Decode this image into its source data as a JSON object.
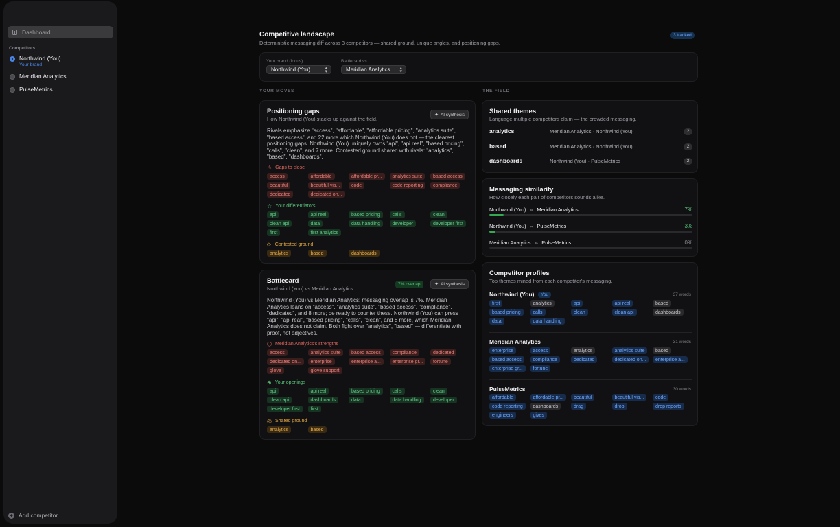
{
  "sidebar": {
    "nav_dashboard": "Dashboard",
    "section_label": "Competitors",
    "competitors": [
      {
        "name": "Northwind (You)",
        "sub": "Your brand"
      },
      {
        "name": "Meridian Analytics"
      },
      {
        "name": "PulseMetrics"
      }
    ],
    "add_competitor": "Add competitor"
  },
  "header": {
    "title": "Competitive landscape",
    "subtitle": "Deterministic messaging diff across 3 competitors — shared ground, unique angles, and positioning gaps.",
    "tracked_badge": "3 tracked"
  },
  "pickers": {
    "focus_label": "Your brand (focus)",
    "focus_value": "Northwind (You)",
    "vs_label": "Battlecard vs",
    "vs_value": "Meridian Analytics"
  },
  "columns": {
    "left": "YOUR MOVES",
    "right": "THE FIELD"
  },
  "ai_badge": "AI synthesis",
  "gaps": {
    "title": "Positioning gaps",
    "subtitle": "How Northwind (You) stacks up against the field.",
    "summary": "Rivals emphasize \"access\", \"affordable\", \"affordable pricing\", \"analytics suite\", \"based access\", and 22 more which Northwind (You) does not — the clearest positioning gaps. Northwind (You) uniquely owns \"api\", \"api real\", \"based pricing\", \"calls\", \"clean\", and 7 more. Contested ground shared with rivals: \"analytics\", \"based\", \"dashboards\".",
    "gaps_label": "Gaps to close",
    "gaps_chips": [
      "access",
      "affordable",
      "affordable pr...",
      "analytics suite",
      "based access",
      "beautiful",
      "beautiful vis...",
      "code",
      "code reporting",
      "compliance",
      "dedicated",
      "dedicated on..."
    ],
    "diff_label": "Your differentiators",
    "diff_chips": [
      "api",
      "api real",
      "based pricing",
      "calls",
      "clean",
      "clean api",
      "data",
      "data handling",
      "developer",
      "developer first",
      "first",
      "first analytics"
    ],
    "contested_label": "Contested ground",
    "contested_chips": [
      "analytics",
      "based",
      "dashboards"
    ]
  },
  "battlecard": {
    "title": "Battlecard",
    "subtitle": "Northwind (You) vs Meridian Analytics",
    "overlap_badge": "7% overlap",
    "summary": "Northwind (You) vs Meridian Analytics: messaging overlap is 7%. Meridian Analytics leans on \"access\", \"analytics suite\", \"based access\", \"compliance\", \"dedicated\", and 8 more; be ready to counter these. Northwind (You) can press \"api\", \"api real\", \"based pricing\", \"calls\", \"clean\", and 8 more, which Meridian Analytics does not claim. Both fight over \"analytics\", \"based\" — differentiate with proof, not adjectives.",
    "strengths_label": "Meridian Analytics's strengths",
    "strengths_chips": [
      "access",
      "analytics suite",
      "based access",
      "compliance",
      "dedicated",
      "dedicated on...",
      "enterprise",
      "enterprise a...",
      "enterprise gr...",
      "fortune",
      "glove",
      "glove support"
    ],
    "openings_label": "Your openings",
    "openings_chips": [
      "api",
      "api real",
      "based pricing",
      "calls",
      "clean",
      "clean api",
      "dashboards",
      "data",
      "data handling",
      "developer",
      "developer first",
      "first"
    ],
    "shared_label": "Shared ground",
    "shared_chips": [
      "analytics",
      "based"
    ]
  },
  "shared_themes": {
    "title": "Shared themes",
    "subtitle": "Language multiple competitors claim — the crowded messaging.",
    "rows": [
      {
        "theme": "analytics",
        "competitors": "Meridian Analytics · Northwind (You)",
        "count": "2"
      },
      {
        "theme": "based",
        "competitors": "Meridian Analytics · Northwind (You)",
        "count": "2"
      },
      {
        "theme": "dashboards",
        "competitors": "Northwind (You) · PulseMetrics",
        "count": "2"
      }
    ]
  },
  "similarity": {
    "title": "Messaging similarity",
    "subtitle": "How closely each pair of competitors sounds alike.",
    "rows": [
      {
        "a": "Northwind (You)",
        "b": "Meridian Analytics",
        "pct_label": "7%",
        "value": 0.07
      },
      {
        "a": "Northwind (You)",
        "b": "PulseMetrics",
        "pct_label": "3%",
        "value": 0.03
      },
      {
        "a": "Meridian Analytics",
        "b": "PulseMetrics",
        "pct_label": "0%",
        "value": 0.0
      }
    ]
  },
  "profiles": {
    "title": "Competitor profiles",
    "subtitle": "Top themes mined from each competitor's messaging.",
    "you_badge": "You",
    "items": [
      {
        "name": "Northwind (You)",
        "words": "37 words",
        "chips": [
          [
            "first",
            "b"
          ],
          [
            "analytics",
            "n"
          ],
          [
            "api",
            "b"
          ],
          [
            "api real",
            "b"
          ],
          [
            "based",
            "n"
          ],
          [
            "based pricing",
            "b"
          ],
          [
            "calls",
            "b"
          ],
          [
            "clean",
            "b"
          ],
          [
            "clean api",
            "b"
          ],
          [
            "dashboards",
            "n"
          ],
          [
            "data",
            "b"
          ],
          [
            "data handling",
            "b"
          ]
        ]
      },
      {
        "name": "Meridian Analytics",
        "words": "31 words",
        "chips": [
          [
            "enterprise",
            "b"
          ],
          [
            "access",
            "b"
          ],
          [
            "analytics",
            "n"
          ],
          [
            "analytics suite",
            "b"
          ],
          [
            "based",
            "n"
          ],
          [
            "based access",
            "b"
          ],
          [
            "compliance",
            "b"
          ],
          [
            "dedicated",
            "b"
          ],
          [
            "dedicated on...",
            "b"
          ],
          [
            "enterprise a...",
            "b"
          ],
          [
            "enterprise gr...",
            "b"
          ],
          [
            "fortune",
            "b"
          ]
        ]
      },
      {
        "name": "PulseMetrics",
        "words": "30 words",
        "chips": [
          [
            "affordable",
            "b"
          ],
          [
            "affordable pr...",
            "b"
          ],
          [
            "beautiful",
            "b"
          ],
          [
            "beautiful vis...",
            "b"
          ],
          [
            "code",
            "b"
          ],
          [
            "code reporting",
            "b"
          ],
          [
            "dashboards",
            "n"
          ],
          [
            "drag",
            "b"
          ],
          [
            "drop",
            "b"
          ],
          [
            "drop reports",
            "b"
          ],
          [
            "engineers",
            "b"
          ],
          [
            "gives",
            "b"
          ]
        ]
      }
    ]
  },
  "colors": {
    "accent": "#4a86e8",
    "positive": "#5ac47a",
    "danger": "#e0675f",
    "warning": "#e0a53f"
  }
}
